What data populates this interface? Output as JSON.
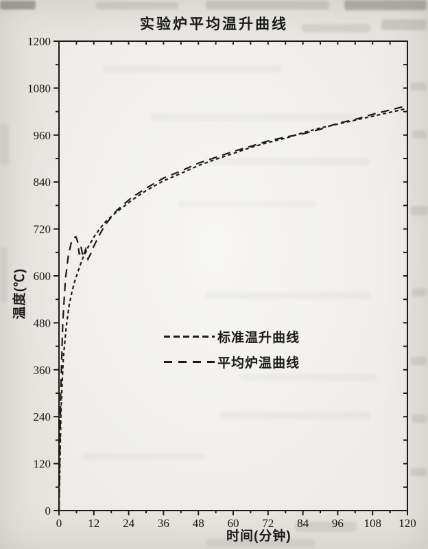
{
  "page": {
    "title": "实验炉平均温升曲线"
  },
  "ink_color": "#1c1b16",
  "paper_color": "#e6e4df",
  "chart_data": {
    "type": "line",
    "title": "实验炉平均温升曲线",
    "xlabel": "时间(分钟)",
    "ylabel": "温度(℃)",
    "xlim": [
      0,
      120
    ],
    "ylim": [
      0,
      1200
    ],
    "x_major_ticks": [
      0,
      12,
      24,
      36,
      48,
      60,
      72,
      84,
      96,
      108,
      120
    ],
    "y_major_ticks": [
      0,
      120,
      240,
      360,
      480,
      600,
      720,
      840,
      960,
      1080,
      1200
    ],
    "x_minor_step": 6,
    "y_minor_step": 60,
    "grid": false,
    "legend_position": "inside-center-left",
    "series": [
      {
        "key": "standard",
        "name": "标准温升曲线",
        "line_style": "short-dash",
        "x": [
          0,
          0.7,
          1.5,
          2.5,
          3.5,
          4.5,
          5.5,
          6.5,
          8,
          10,
          12,
          14,
          16,
          18,
          20,
          25,
          30,
          36,
          42,
          48,
          54,
          60,
          66,
          72,
          78,
          84,
          90,
          96,
          102,
          108,
          114,
          120
        ],
        "y": [
          0,
          260,
          390,
          470,
          525,
          560,
          588,
          610,
          642,
          673,
          699,
          720,
          738,
          752,
          764,
          793,
          818,
          843,
          862,
          882,
          898,
          913,
          928,
          941,
          952,
          966,
          978,
          988,
          998,
          1008,
          1018,
          1028
        ]
      },
      {
        "key": "average",
        "name": "平均炉温曲线",
        "line_style": "long-dash",
        "x": [
          0,
          0.6,
          1.3,
          2.2,
          3.2,
          4.2,
          5,
          5.8,
          6.4,
          7,
          7.6,
          8.3,
          9.2,
          10,
          11,
          12,
          14,
          16,
          18,
          20,
          25,
          30,
          36,
          42,
          48,
          54,
          60,
          66,
          72,
          78,
          84,
          90,
          96,
          102,
          108,
          114,
          120
        ],
        "y": [
          0,
          300,
          480,
          590,
          650,
          685,
          697,
          700,
          688,
          655,
          674,
          648,
          668,
          643,
          658,
          676,
          706,
          731,
          750,
          768,
          800,
          824,
          850,
          868,
          888,
          903,
          918,
          931,
          945,
          955,
          963,
          975,
          990,
          1000,
          1013,
          1024,
          1035
        ]
      }
    ]
  }
}
